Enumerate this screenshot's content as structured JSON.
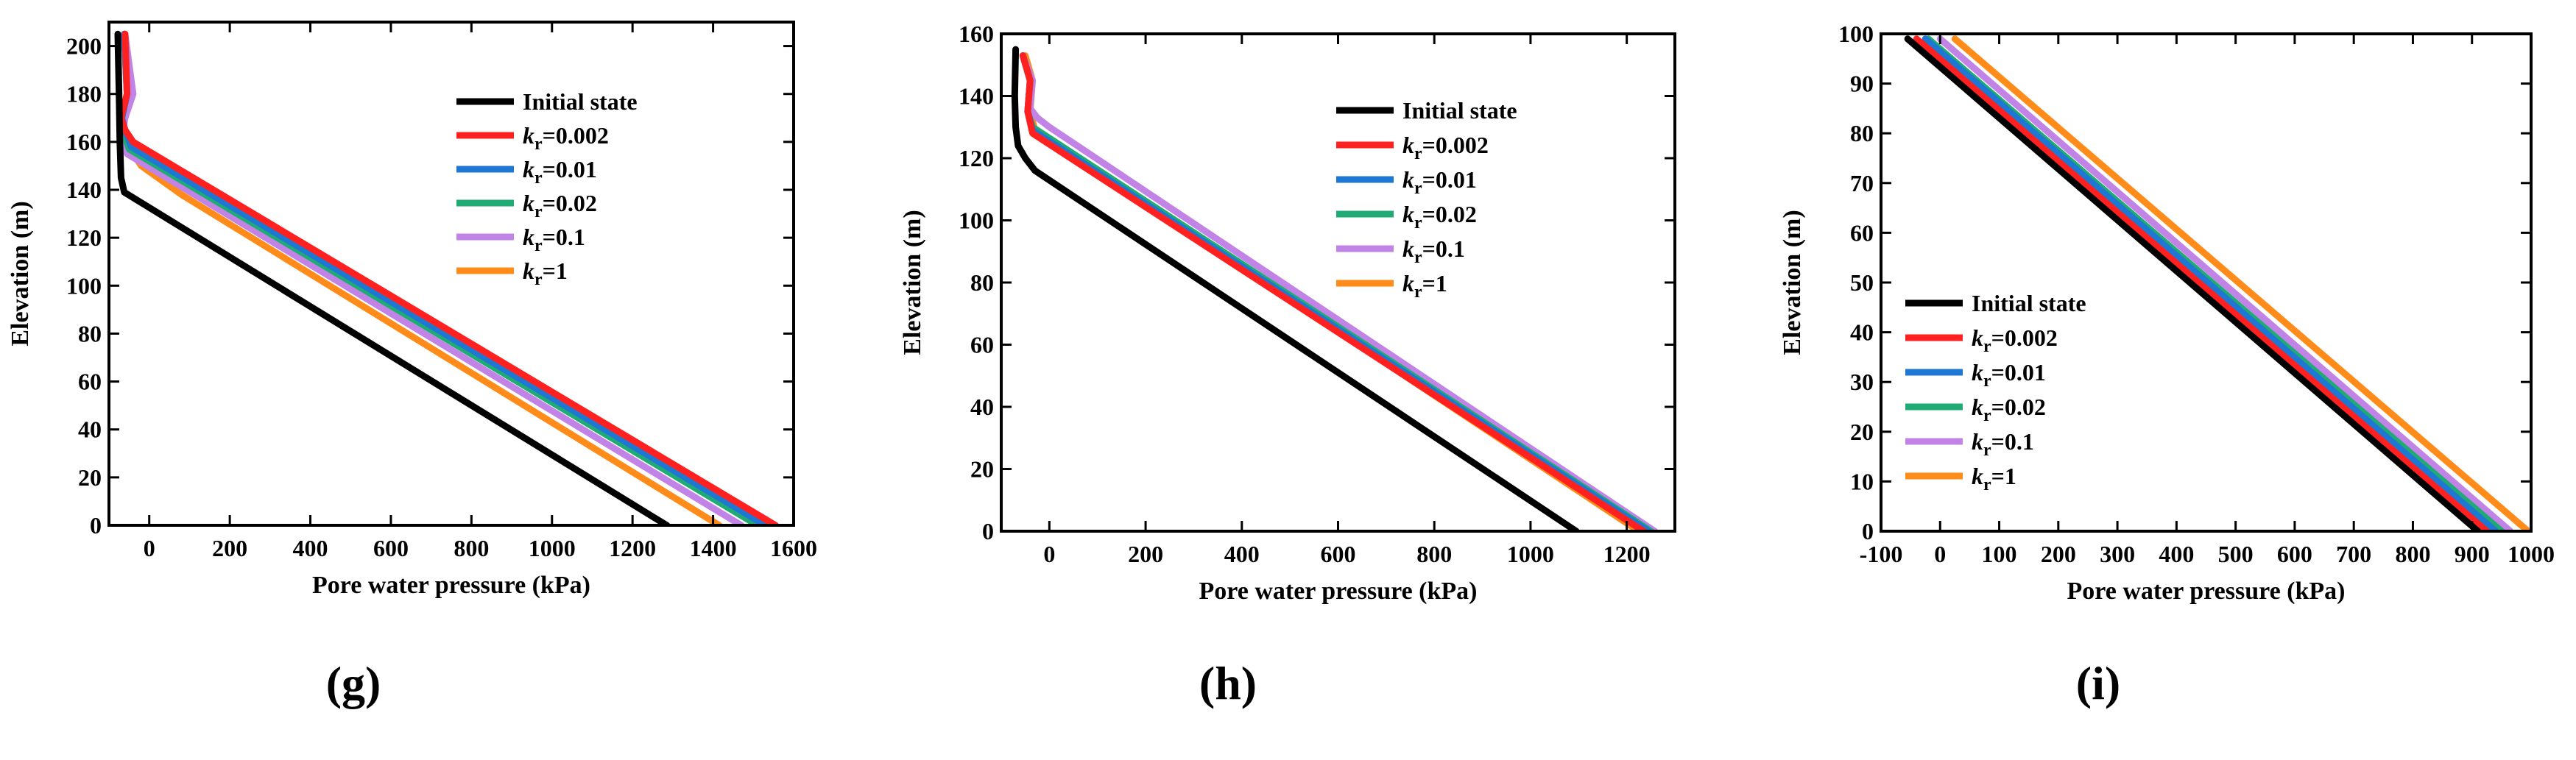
{
  "legend_labels": [
    "Initial state",
    "k_r=0.002",
    "k_r=0.01",
    "k_r=0.02",
    "k_r=0.1",
    "k_r=1"
  ],
  "series_colors": [
    "#000000",
    "#ff2020",
    "#1f77d4",
    "#1fab73",
    "#c183e6",
    "#ff8c1a"
  ],
  "chart_data": [
    {
      "type": "line",
      "panel": "(g)",
      "xlabel": "Pore water pressure (kPa)",
      "ylabel": "Elevation (m)",
      "xlim": [
        -100,
        1600
      ],
      "ylim": [
        0,
        210
      ],
      "xticks": [
        0,
        200,
        400,
        600,
        800,
        1000,
        1200,
        1400,
        1600
      ],
      "yticks": [
        0,
        20,
        40,
        60,
        80,
        100,
        120,
        140,
        160,
        180,
        200
      ],
      "legend": {
        "position": "upper-right",
        "entries": [
          {
            "prefix": "Initial state",
            "sub": "",
            "suffix": ""
          },
          {
            "prefix": "k",
            "sub": "r",
            "suffix": "=0.002"
          },
          {
            "prefix": "k",
            "sub": "r",
            "suffix": "=0.01"
          },
          {
            "prefix": "k",
            "sub": "r",
            "suffix": "=0.02"
          },
          {
            "prefix": "k",
            "sub": "r",
            "suffix": "=0.1"
          },
          {
            "prefix": "k",
            "sub": "r",
            "suffix": "=1"
          }
        ]
      },
      "series": [
        {
          "name": "Initial state",
          "x": [
            -78,
            -75,
            -73,
            -70,
            -62,
            1285
          ],
          "y": [
            205,
            180,
            160,
            145,
            139,
            0
          ]
        },
        {
          "name": "k_r=0.002",
          "x": [
            -60,
            -55,
            -70,
            -60,
            -40,
            1555
          ],
          "y": [
            205,
            180,
            170,
            165,
            160,
            0
          ]
        },
        {
          "name": "k_r=0.01",
          "x": [
            -62,
            -55,
            -68,
            -60,
            -45,
            1530
          ],
          "y": [
            205,
            180,
            170,
            165,
            158,
            0
          ]
        },
        {
          "name": "k_r=0.02",
          "x": [
            -62,
            -55,
            -68,
            -62,
            -50,
            1510
          ],
          "y": [
            205,
            180,
            170,
            163,
            157,
            0
          ]
        },
        {
          "name": "k_r=0.1",
          "x": [
            -60,
            -40,
            -60,
            -70,
            -55,
            1470
          ],
          "y": [
            205,
            180,
            170,
            160,
            155,
            0
          ]
        },
        {
          "name": "k_r=1",
          "x": [
            -60,
            -55,
            -70,
            -60,
            -20,
            80,
            1415
          ],
          "y": [
            205,
            180,
            170,
            160,
            150,
            138,
            0
          ]
        }
      ]
    },
    {
      "type": "line",
      "panel": "(h)",
      "xlabel": "Pore water pressure (kPa)",
      "ylabel": "Elevation (m)",
      "xlim": [
        -100,
        1300
      ],
      "ylim": [
        0,
        160
      ],
      "xticks": [
        0,
        200,
        400,
        600,
        800,
        1000,
        1200
      ],
      "yticks": [
        0,
        20,
        40,
        60,
        80,
        100,
        120,
        140,
        160
      ],
      "legend": {
        "position": "upper-right",
        "entries": [
          {
            "prefix": "Initial state",
            "sub": "",
            "suffix": ""
          },
          {
            "prefix": "k",
            "sub": "r",
            "suffix": "=0.002"
          },
          {
            "prefix": "k",
            "sub": "r",
            "suffix": "=0.01"
          },
          {
            "prefix": "k",
            "sub": "r",
            "suffix": "=0.02"
          },
          {
            "prefix": "k",
            "sub": "r",
            "suffix": "=0.1"
          },
          {
            "prefix": "k",
            "sub": "r",
            "suffix": "=1"
          }
        ]
      },
      "series": [
        {
          "name": "Initial state",
          "x": [
            -70,
            -72,
            -70,
            -65,
            -50,
            -30,
            1095
          ],
          "y": [
            155,
            140,
            130,
            124,
            120,
            116,
            0
          ]
        },
        {
          "name": "k_r=0.002",
          "x": [
            -55,
            -40,
            -45,
            -35,
            1235
          ],
          "y": [
            153,
            145,
            135,
            128,
            0
          ]
        },
        {
          "name": "k_r=0.01",
          "x": [
            -55,
            -40,
            -45,
            -35,
            1245
          ],
          "y": [
            153,
            145,
            135,
            129,
            0
          ]
        },
        {
          "name": "k_r=0.02",
          "x": [
            -55,
            -40,
            -45,
            -35,
            1250
          ],
          "y": [
            153,
            145,
            135,
            130,
            0
          ]
        },
        {
          "name": "k_r=0.1",
          "x": [
            -55,
            -35,
            -40,
            -25,
            0,
            1258
          ],
          "y": [
            153,
            145,
            136,
            133,
            130,
            0
          ]
        },
        {
          "name": "k_r=1",
          "x": [
            -50,
            -35,
            -40,
            -30,
            1225
          ],
          "y": [
            153,
            145,
            135,
            129,
            0
          ]
        }
      ]
    },
    {
      "type": "line",
      "panel": "(i)",
      "xlabel": "Pore water pressure (kPa)",
      "ylabel": "Elevation (m)",
      "xlim": [
        -100,
        1000
      ],
      "ylim": [
        0,
        100
      ],
      "xticks": [
        -100,
        0,
        100,
        200,
        300,
        400,
        500,
        600,
        700,
        800,
        900,
        1000
      ],
      "yticks": [
        0,
        10,
        20,
        30,
        40,
        50,
        60,
        70,
        80,
        90,
        100
      ],
      "legend": {
        "position": "lower-left",
        "entries": [
          {
            "prefix": "Initial state",
            "sub": "",
            "suffix": ""
          },
          {
            "prefix": "k",
            "sub": "r",
            "suffix": "=0.002"
          },
          {
            "prefix": "k",
            "sub": "r",
            "suffix": "=0.01"
          },
          {
            "prefix": "k",
            "sub": "r",
            "suffix": "=0.02"
          },
          {
            "prefix": "k",
            "sub": "r",
            "suffix": "=0.1"
          },
          {
            "prefix": "k",
            "sub": "r",
            "suffix": "=1"
          }
        ]
      },
      "series": [
        {
          "name": "Initial state",
          "x": [
            -55,
            910
          ],
          "y": [
            99,
            0
          ]
        },
        {
          "name": "k_r=0.002",
          "x": [
            -40,
            925
          ],
          "y": [
            99,
            0
          ]
        },
        {
          "name": "k_r=0.01",
          "x": [
            -25,
            940
          ],
          "y": [
            99,
            0
          ]
        },
        {
          "name": "k_r=0.02",
          "x": [
            -20,
            950
          ],
          "y": [
            99,
            0
          ]
        },
        {
          "name": "k_r=0.1",
          "x": [
            0,
            965
          ],
          "y": [
            99,
            0
          ]
        },
        {
          "name": "k_r=1",
          "x": [
            25,
            995
          ],
          "y": [
            99,
            0
          ]
        }
      ]
    }
  ]
}
